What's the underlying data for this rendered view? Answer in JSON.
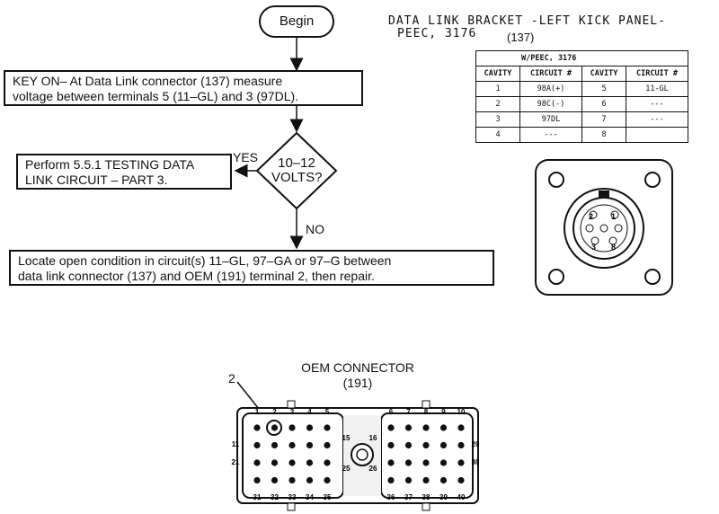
{
  "flow": {
    "begin": "Begin",
    "step1": [
      "KEY ON– At Data Link connector (137) measure",
      "voltage between terminals 5 (11–GL) and 3 (97DL)."
    ],
    "decision": [
      "10–12",
      "VOLTS?"
    ],
    "yes": "YES",
    "no": "NO",
    "yes_action": [
      "Perform 5.5.1 TESTING DATA",
      "LINK CIRCUIT – PART 3."
    ],
    "no_action": [
      "Locate open condition in circuit(s) 11–GL, 97–GA or 97–G between",
      "data link connector (137) and OEM (191) terminal 2, then repair."
    ]
  },
  "bracket": {
    "title": "DATA LINK BRACKET -LEFT KICK PANEL-",
    "subtitle": "PEEC, 3176",
    "ref": "(137)",
    "table_title": "W/PEEC, 3176",
    "headers": [
      "CAVITY",
      "CIRCUIT #",
      "CAVITY",
      "CIRCUIT #"
    ],
    "rows": [
      [
        "1",
        "98A(+)",
        "5",
        "11-GL"
      ],
      [
        "2",
        "98C(-)",
        "6",
        "---"
      ],
      [
        "3",
        "97DL",
        "7",
        "---"
      ],
      [
        "4",
        "---",
        "8",
        ""
      ]
    ],
    "pin_labels": [
      "2",
      "1",
      "3",
      "8"
    ]
  },
  "oem": {
    "title": "OEM CONNECTOR",
    "ref": "(191)",
    "callout": "2",
    "top_left_pins": [
      "1",
      "2",
      "3",
      "4",
      "5"
    ],
    "top_right_pins": [
      "6",
      "7",
      "8",
      "9",
      "10"
    ],
    "bottom_left_pins": [
      "31",
      "32",
      "33",
      "34",
      "35"
    ],
    "bottom_right_pins": [
      "36",
      "37",
      "38",
      "39",
      "40"
    ],
    "side_labels": [
      "11",
      "21",
      "20",
      "30",
      "15",
      "16",
      "25",
      "26"
    ]
  }
}
